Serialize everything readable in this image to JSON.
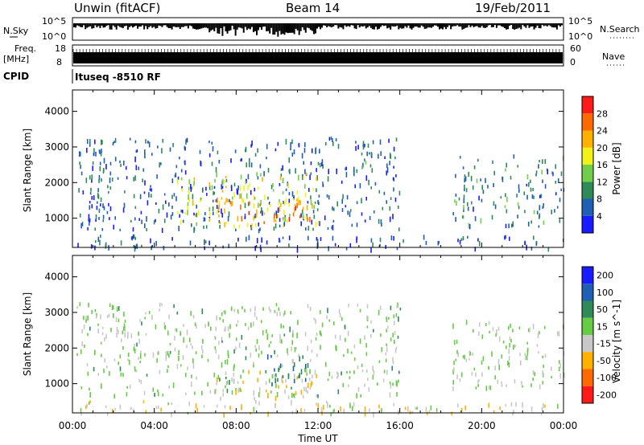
{
  "header": {
    "station": "Unwin (fitACF)",
    "beam": "Beam 14",
    "date": "19/Feb/2011"
  },
  "noise_panel": {
    "left_label": "N.Sky",
    "left_tick_top": "10^5",
    "left_tick_bottom": "10^0",
    "right_tick_top": "10^5",
    "right_tick_bottom": "10^0",
    "right_label": "N.Search"
  },
  "freq_panel": {
    "left_label_1": "Freq.",
    "left_label_2": "[MHz]",
    "left_tick_top": "18",
    "left_tick_bottom": "8",
    "right_tick_top": "60",
    "right_tick_bottom": "0",
    "right_label": "Nave"
  },
  "cpid": {
    "label": "CPID",
    "value": "Ituseq -8510 RF"
  },
  "chart_data": [
    {
      "type": "heatmap",
      "name_in_image": "power",
      "ylabel": "Slant Range [km]",
      "ylim": [
        180,
        4600
      ],
      "yticks": [
        "1000",
        "2000",
        "3000",
        "4000"
      ],
      "xlim": [
        "00:00",
        "24:00"
      ],
      "colorbar": {
        "label": "Power [dB]",
        "range": [
          0,
          32
        ],
        "ticks": [
          "4",
          "8",
          "12",
          "16",
          "20",
          "24",
          "28"
        ],
        "colors": [
          "#1a1aff",
          "#1f5fb5",
          "#2e8b57",
          "#6fcf4a",
          "#f2f21a",
          "#ffb000",
          "#ff6a00",
          "#ff1a1a"
        ]
      },
      "regions": [
        {
          "t0": 0.2,
          "t1": 16.0,
          "r0": 700,
          "r1": 3300,
          "level": 6
        },
        {
          "t0": 5.0,
          "t1": 12.0,
          "r0": 800,
          "r1": 2300,
          "level": 18
        },
        {
          "t0": 7.0,
          "t1": 12.0,
          "r0": 900,
          "r1": 1600,
          "level": 24
        },
        {
          "t0": 14.0,
          "t1": 15.5,
          "r0": 2400,
          "r1": 3100,
          "level": 10
        },
        {
          "t0": 18.5,
          "t1": 24.0,
          "r0": 800,
          "r1": 2800,
          "level": 8
        },
        {
          "t0": 0.0,
          "t1": 24.0,
          "r0": 180,
          "r1": 550,
          "level": 5
        }
      ]
    },
    {
      "type": "heatmap",
      "name_in_image": "velocity",
      "ylabel": "Slant Range [km]",
      "ylim": [
        180,
        4600
      ],
      "yticks": [
        "1000",
        "2000",
        "3000",
        "4000"
      ],
      "xlim": [
        "00:00",
        "24:00"
      ],
      "colorbar": {
        "label": "Velocity [m s^-1]",
        "ticks": [
          "200",
          "100",
          "50",
          "15",
          "-15",
          "-50",
          "-100",
          "-200"
        ],
        "colors": [
          "#1a1aff",
          "#1f5fb5",
          "#2e8b57",
          "#66cc44",
          "#c8c8c8",
          "#ffb000",
          "#ff6a00",
          "#ff1a1a"
        ]
      },
      "regions": [
        {
          "t0": 0.2,
          "t1": 16.0,
          "r0": 700,
          "r1": 3300,
          "level": 15
        },
        {
          "t0": 7.0,
          "t1": 12.0,
          "r0": 600,
          "r1": 1400,
          "level": -60
        },
        {
          "t0": 9.5,
          "t1": 11.5,
          "r0": 1000,
          "r1": 2000,
          "level": 120
        },
        {
          "t0": 18.5,
          "t1": 24.0,
          "r0": 900,
          "r1": 2800,
          "level": 0
        },
        {
          "t0": 0.0,
          "t1": 24.0,
          "r0": 180,
          "r1": 550,
          "level": -40
        }
      ]
    }
  ],
  "xaxis": {
    "ticks": [
      "00:00",
      "04:00",
      "08:00",
      "12:00",
      "16:00",
      "20:00",
      "00:00"
    ],
    "label": "Time UT"
  },
  "colors": {
    "axis": "#000000",
    "bar": "#000000"
  }
}
